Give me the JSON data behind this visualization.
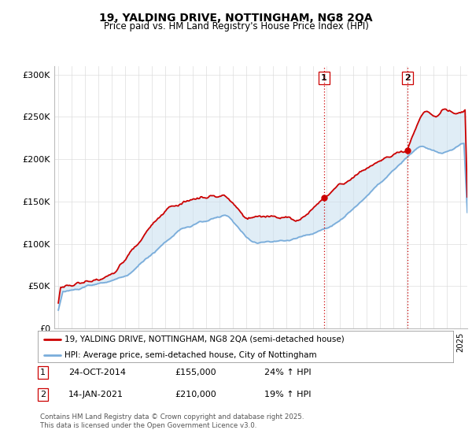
{
  "title": "19, YALDING DRIVE, NOTTINGHAM, NG8 2QA",
  "subtitle": "Price paid vs. HM Land Registry's House Price Index (HPI)",
  "legend_line1": "19, YALDING DRIVE, NOTTINGHAM, NG8 2QA (semi-detached house)",
  "legend_line2": "HPI: Average price, semi-detached house, City of Nottingham",
  "annotation1_label": "1",
  "annotation1_date": "24-OCT-2014",
  "annotation1_price": "£155,000",
  "annotation1_hpi": "24% ↑ HPI",
  "annotation2_label": "2",
  "annotation2_date": "14-JAN-2021",
  "annotation2_price": "£210,000",
  "annotation2_hpi": "19% ↑ HPI",
  "footnote": "Contains HM Land Registry data © Crown copyright and database right 2025.\nThis data is licensed under the Open Government Licence v3.0.",
  "red_color": "#cc0000",
  "blue_color": "#7aaddb",
  "fill_color": "#c8dff0",
  "vline_color": "#cc0000",
  "background_color": "#ffffff",
  "grid_color": "#dddddd",
  "ylim": [
    0,
    310000
  ],
  "yticks": [
    0,
    50000,
    100000,
    150000,
    200000,
    250000,
    300000
  ],
  "ytick_labels": [
    "£0",
    "£50K",
    "£100K",
    "£150K",
    "£200K",
    "£250K",
    "£300K"
  ],
  "sale1_x": 2014.82,
  "sale1_y": 155000,
  "sale2_x": 2021.04,
  "sale2_y": 210000,
  "xmin": 1995.0,
  "xmax": 2025.5
}
